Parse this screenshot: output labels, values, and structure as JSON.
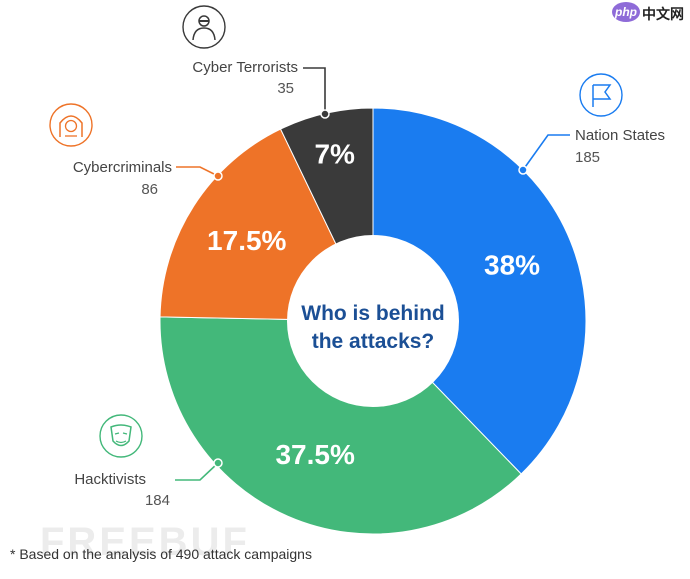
{
  "watermark": {
    "logo": "php",
    "text": "中文网"
  },
  "footnote": "* Based on the analysis of 490 attack campaigns",
  "faint_watermark": "FREEBUF",
  "chart_data": {
    "type": "pie",
    "donut": true,
    "center_text": [
      "Who is behind",
      "the attacks?"
    ],
    "total": 490,
    "segments": [
      {
        "name": "Nation States",
        "value": 185,
        "percent_label": "38%",
        "color": "#1a7cf0",
        "icon": "flag-icon"
      },
      {
        "name": "Hacktivists",
        "value": 184,
        "percent_label": "37.5%",
        "color": "#43b87a",
        "icon": "mask-icon"
      },
      {
        "name": "Cybercriminals",
        "value": 86,
        "percent_label": "17.5%",
        "color": "#ee7328",
        "icon": "hooded-figure-icon"
      },
      {
        "name": "Cyber Terrorists",
        "value": 35,
        "percent_label": "7%",
        "color": "#3a3a3a",
        "icon": "terrorist-icon"
      }
    ]
  }
}
